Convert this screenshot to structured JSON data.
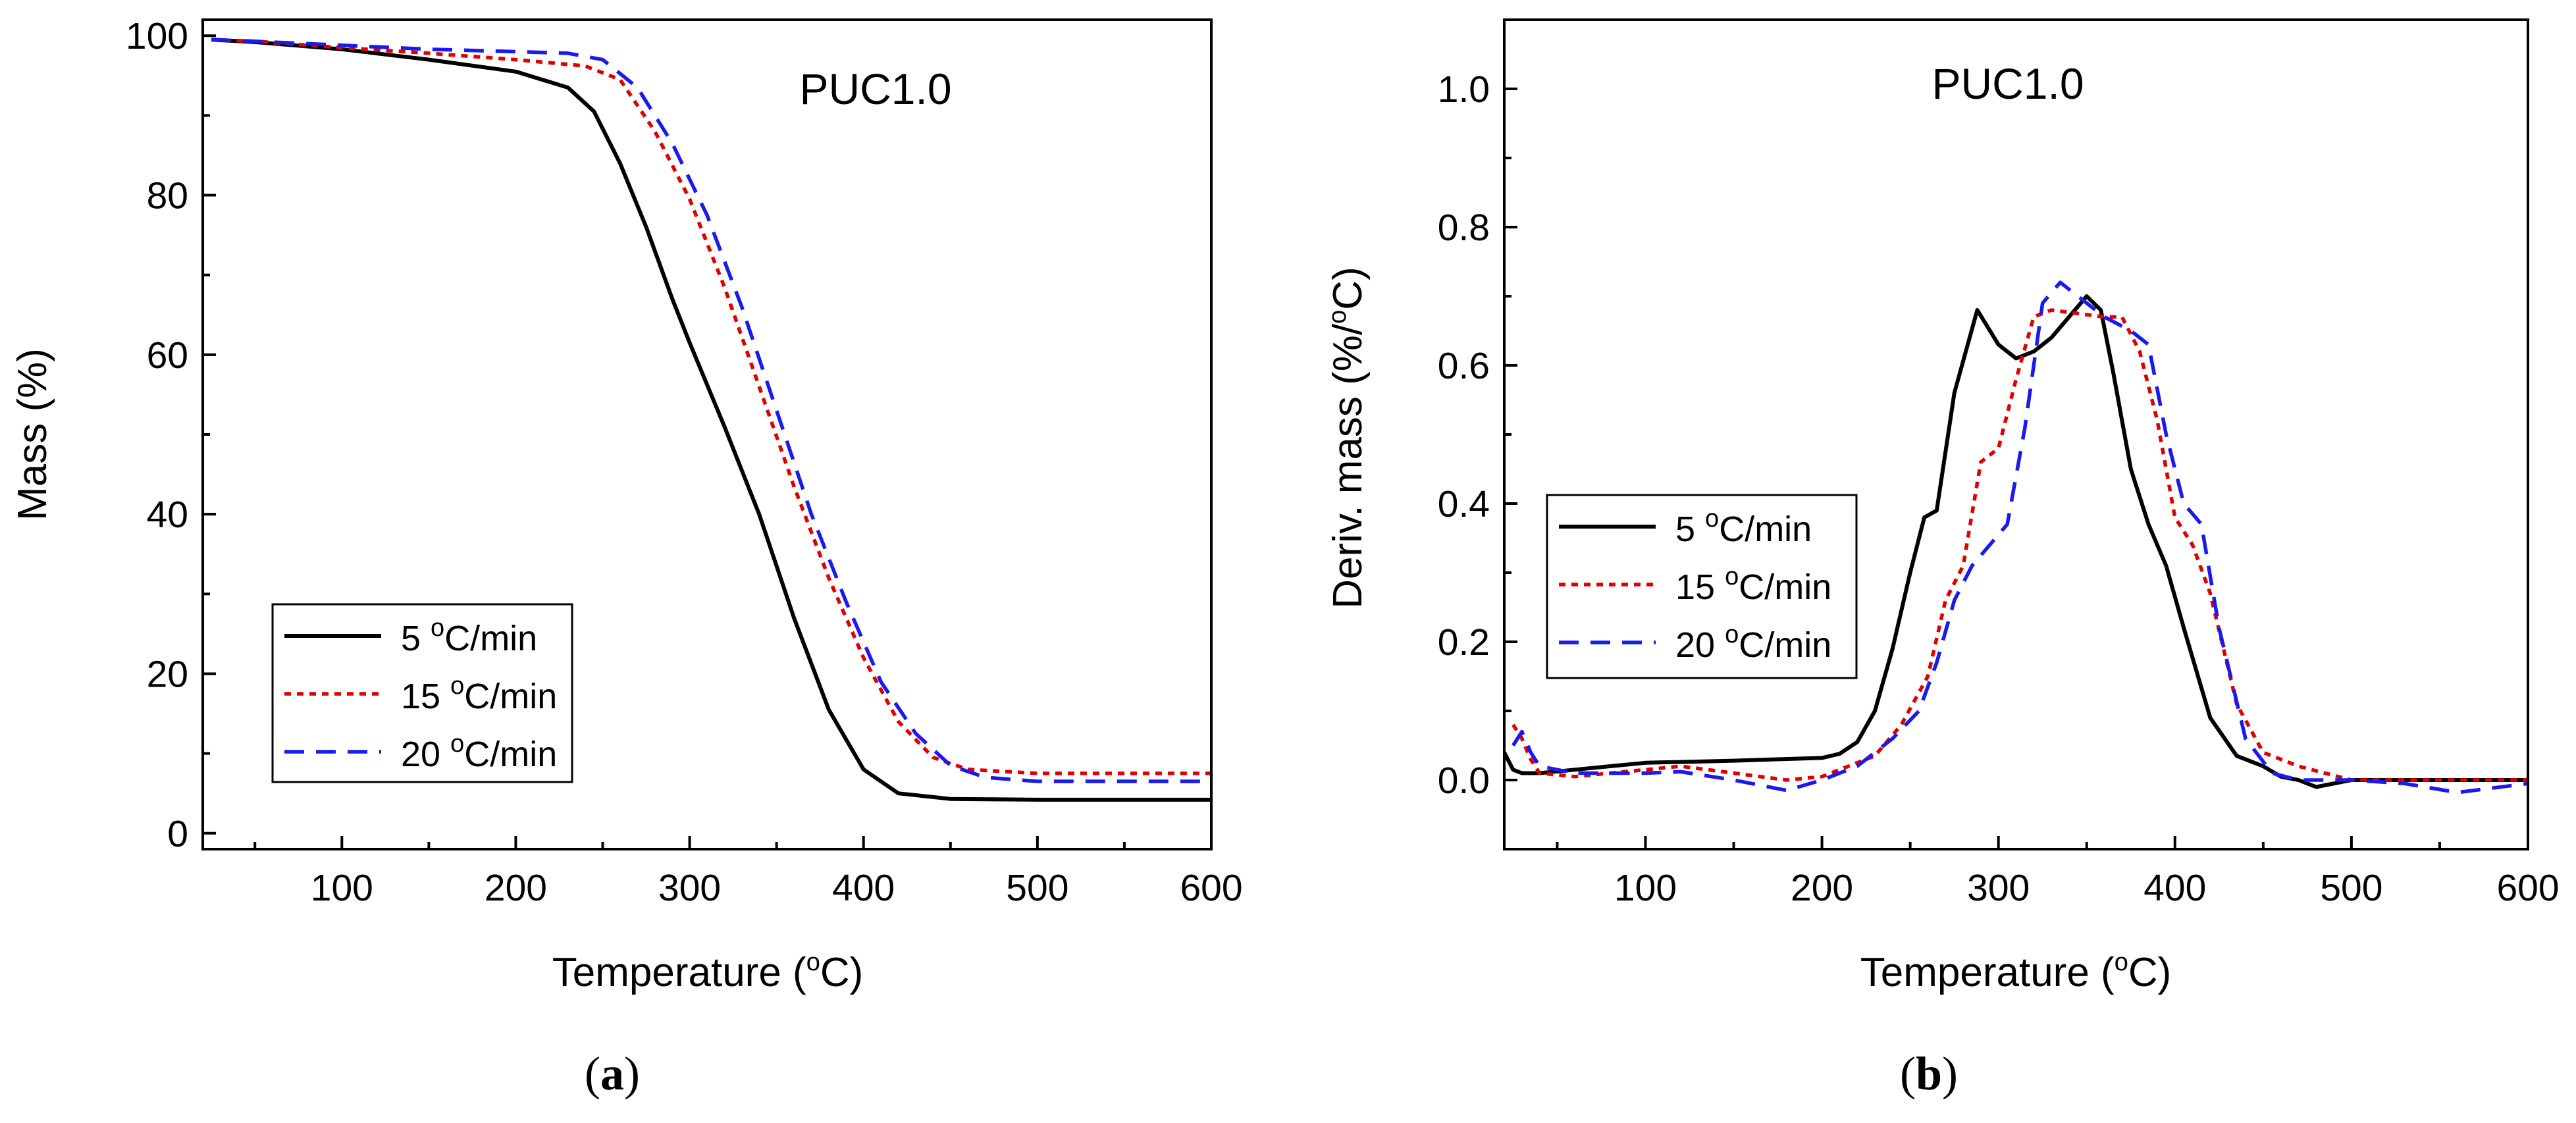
{
  "chart_data": [
    {
      "type": "line",
      "panel_label": "a",
      "title": "PUC1.0",
      "xlabel": "Temperature",
      "xlabel_unit": "C",
      "ylabel": "Mass (%)",
      "xlim": [
        20,
        600
      ],
      "ylim": [
        -2,
        102
      ],
      "xticks": [
        100,
        200,
        300,
        400,
        500,
        600
      ],
      "yticks": [
        0,
        20,
        40,
        60,
        80,
        100
      ],
      "legend_position": "bottom-left",
      "series": [
        {
          "name": "5 °C/min",
          "label_rate": "5",
          "label_unit": "C/min",
          "color": "#000000",
          "dash": "solid",
          "x": [
            25,
            50,
            100,
            150,
            200,
            230,
            245,
            260,
            275,
            290,
            300,
            320,
            340,
            360,
            380,
            400,
            420,
            450,
            500,
            600
          ],
          "y": [
            99.5,
            99.2,
            98.3,
            97.0,
            95.5,
            93.5,
            90.5,
            84,
            76,
            67,
            61.5,
            51,
            40,
            27,
            15.5,
            8,
            5,
            4.3,
            4.2,
            4.2
          ]
        },
        {
          "name": "15 °C/min",
          "label_rate": "15",
          "label_unit": "C/min",
          "color": "#e00000",
          "dash": "dot",
          "x": [
            25,
            50,
            100,
            150,
            200,
            240,
            260,
            280,
            300,
            320,
            340,
            360,
            380,
            400,
            420,
            440,
            460,
            500,
            600
          ],
          "y": [
            99.5,
            99.3,
            98.5,
            97.8,
            97.0,
            96.2,
            94.5,
            88,
            79.5,
            68.5,
            56,
            43.5,
            32,
            22,
            14,
            9.5,
            8,
            7.5,
            7.5
          ]
        },
        {
          "name": "20 °C/min",
          "label_rate": "20",
          "label_unit": "C/min",
          "color": "#1a1aee",
          "dash": "dash",
          "x": [
            25,
            50,
            100,
            150,
            200,
            230,
            250,
            270,
            290,
            310,
            330,
            350,
            370,
            390,
            410,
            430,
            450,
            470,
            500,
            600
          ],
          "y": [
            99.5,
            99.3,
            98.8,
            98.3,
            98.0,
            97.8,
            97.0,
            93.5,
            86.5,
            77.5,
            66,
            53,
            40,
            29,
            19,
            12.5,
            8.5,
            7,
            6.5,
            6.5
          ]
        }
      ]
    },
    {
      "type": "line",
      "panel_label": "b",
      "title": "PUC1.0",
      "xlabel": "Temperature",
      "xlabel_unit": "C",
      "ylabel": "Deriv. mass",
      "ylabel_unit": "%/",
      "ylabel_unit_tail": "C",
      "xlim": [
        20,
        600
      ],
      "ylim": [
        -0.1,
        1.1
      ],
      "xticks": [
        100,
        200,
        300,
        400,
        500,
        600
      ],
      "yticks": [
        0.0,
        0.2,
        0.4,
        0.6,
        0.8,
        1.0
      ],
      "ytick_labels": [
        "0.0",
        "0.2",
        "0.4",
        "0.6",
        "0.8",
        "1.0"
      ],
      "legend_position": "middle-left",
      "series": [
        {
          "name": "5 °C/min",
          "label_rate": "5",
          "label_unit": "C/min",
          "color": "#000000",
          "dash": "solid",
          "x": [
            20,
            25,
            30,
            40,
            60,
            80,
            100,
            150,
            200,
            210,
            220,
            230,
            240,
            250,
            258,
            265,
            275,
            288,
            300,
            310,
            320,
            330,
            340,
            350,
            358,
            365,
            375,
            385,
            395,
            405,
            420,
            435,
            450,
            460,
            470,
            480,
            500,
            600
          ],
          "y": [
            0.04,
            0.015,
            0.01,
            0.01,
            0.015,
            0.02,
            0.025,
            0.028,
            0.032,
            0.038,
            0.055,
            0.1,
            0.19,
            0.3,
            0.38,
            0.39,
            0.56,
            0.68,
            0.63,
            0.61,
            0.62,
            0.64,
            0.67,
            0.7,
            0.68,
            0.59,
            0.45,
            0.37,
            0.31,
            0.22,
            0.09,
            0.035,
            0.02,
            0.005,
            0.0,
            -0.01,
            0.0,
            0.0
          ]
        },
        {
          "name": "15 °C/min",
          "label_rate": "15",
          "label_unit": "C/min",
          "color": "#e00000",
          "dash": "dot",
          "x": [
            25,
            30,
            35,
            40,
            60,
            80,
            100,
            120,
            150,
            180,
            200,
            215,
            230,
            245,
            260,
            270,
            280,
            290,
            300,
            310,
            320,
            330,
            345,
            360,
            370,
            380,
            390,
            400,
            410,
            420,
            435,
            450,
            470,
            500,
            600
          ],
          "y": [
            0.08,
            0.06,
            0.03,
            0.01,
            0.005,
            0.01,
            0.015,
            0.02,
            0.01,
            0.0,
            0.005,
            0.02,
            0.035,
            0.08,
            0.15,
            0.26,
            0.31,
            0.46,
            0.48,
            0.58,
            0.67,
            0.68,
            0.675,
            0.67,
            0.67,
            0.62,
            0.52,
            0.38,
            0.34,
            0.27,
            0.11,
            0.04,
            0.02,
            0.0,
            0.0
          ]
        },
        {
          "name": "20 °C/min",
          "label_rate": "20",
          "label_unit": "C/min",
          "color": "#1a1aee",
          "dash": "dash",
          "x": [
            25,
            30,
            35,
            40,
            60,
            80,
            100,
            120,
            150,
            180,
            200,
            220,
            240,
            255,
            265,
            275,
            285,
            295,
            305,
            315,
            325,
            335,
            345,
            360,
            375,
            385,
            395,
            405,
            415,
            425,
            440,
            455,
            470,
            500,
            530,
            560,
            600
          ],
          "y": [
            0.05,
            0.07,
            0.04,
            0.02,
            0.01,
            0.01,
            0.01,
            0.012,
            0.0,
            -0.015,
            0.0,
            0.02,
            0.06,
            0.1,
            0.17,
            0.26,
            0.31,
            0.34,
            0.37,
            0.51,
            0.69,
            0.72,
            0.7,
            0.67,
            0.65,
            0.63,
            0.5,
            0.4,
            0.37,
            0.22,
            0.06,
            0.01,
            0.0,
            0.0,
            -0.005,
            -0.018,
            -0.005
          ]
        }
      ]
    }
  ]
}
